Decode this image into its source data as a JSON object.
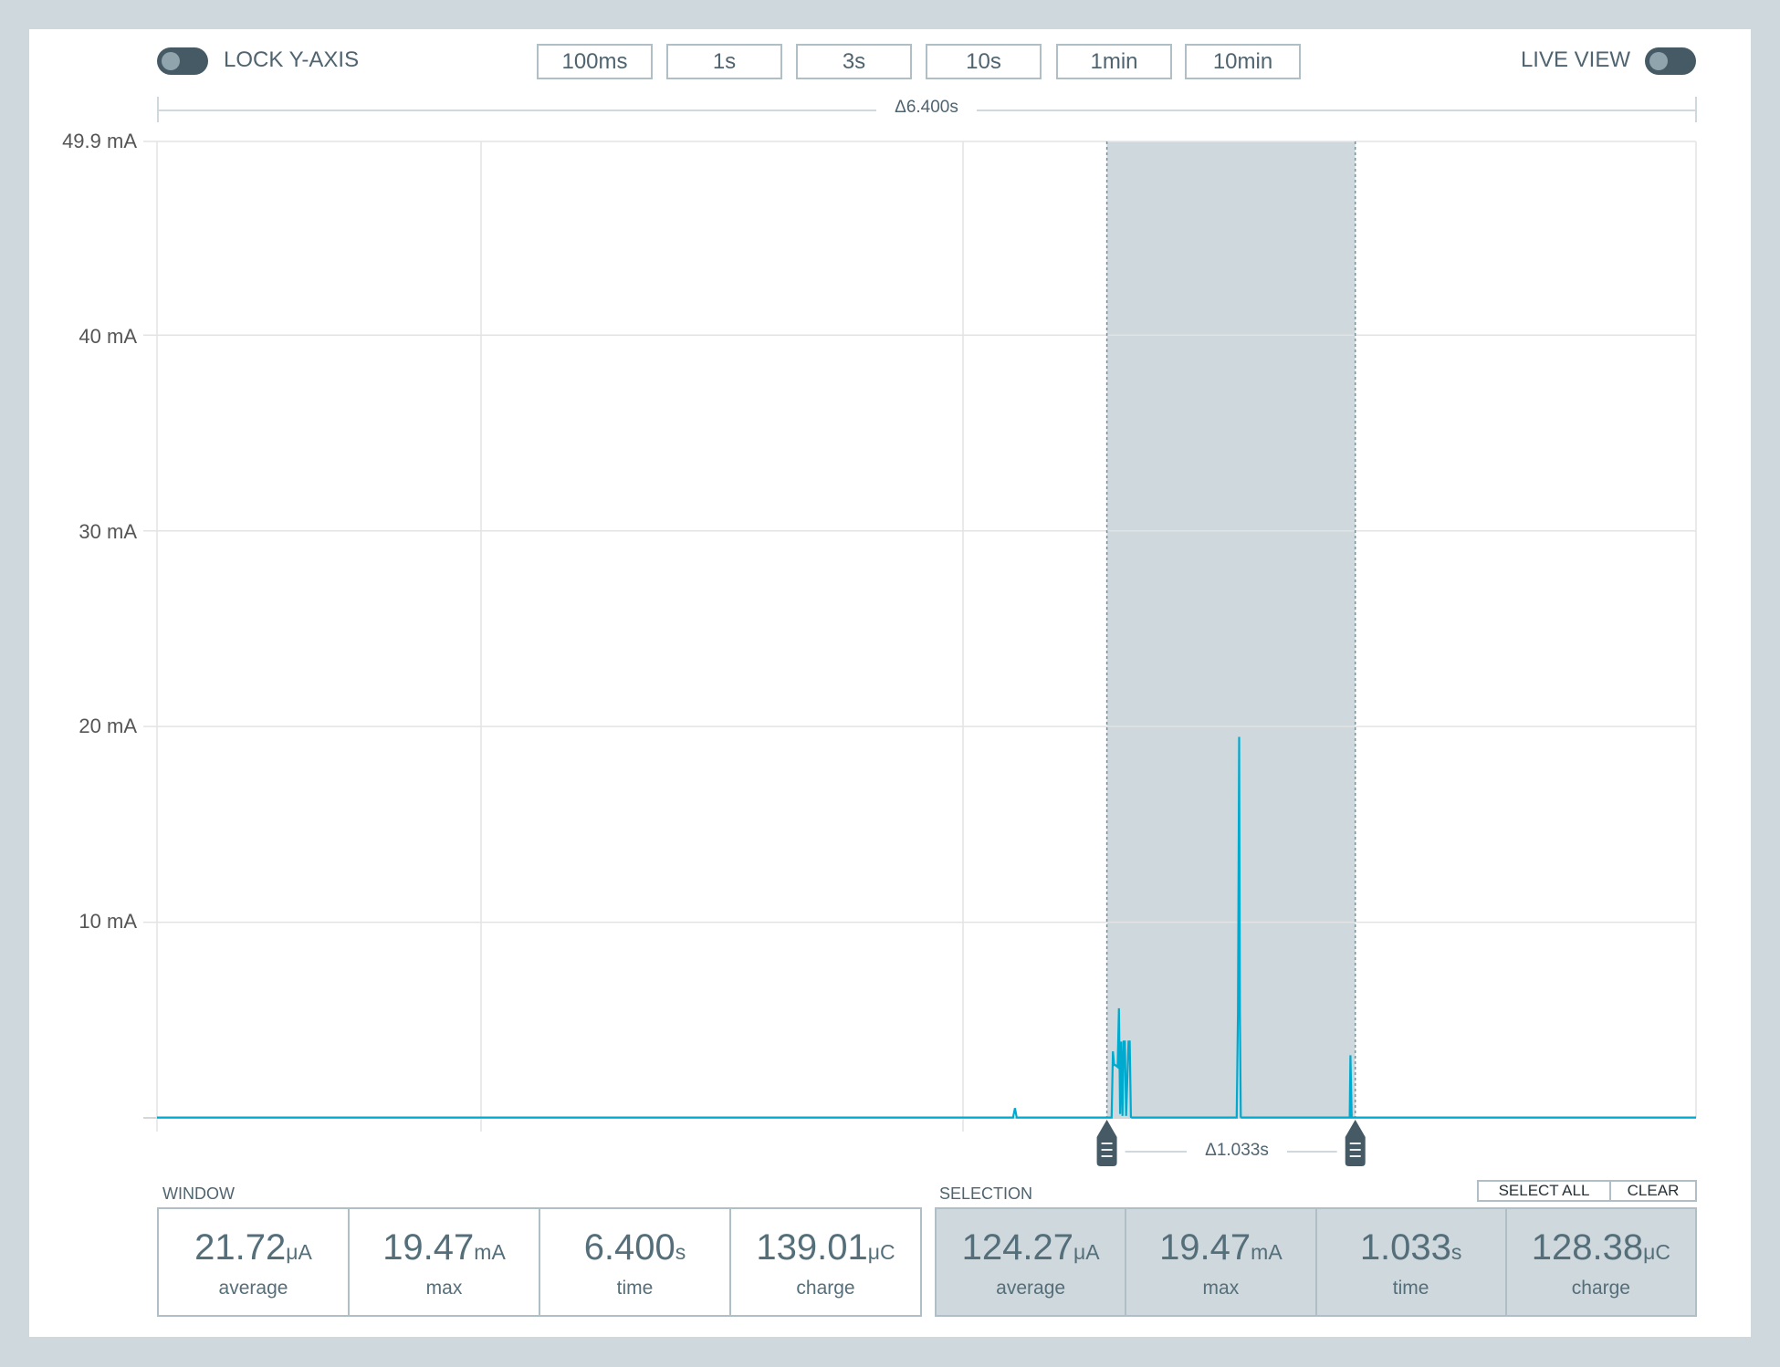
{
  "toolbar": {
    "lock_y_axis": {
      "label": "LOCK Y-AXIS",
      "on": false
    },
    "live_view": {
      "label": "LIVE VIEW",
      "on": false
    },
    "window_buttons": [
      "100ms",
      "1s",
      "3s",
      "10s",
      "1min",
      "10min"
    ]
  },
  "window_span_label": "Δ6.400s",
  "selection_span_label": "Δ1.033s",
  "colors": {
    "trace": "#00a9ce",
    "selection": "#cfd8dc",
    "handle": "#455a64",
    "text": "#4f6470"
  },
  "chart_data": {
    "type": "line",
    "ylabel_ticks": [
      "49.9 mA",
      "40 mA",
      "30 mA",
      "20 mA",
      "10 mA"
    ],
    "ytick_values": [
      49.9,
      40,
      30,
      20,
      10
    ],
    "ylim": [
      0,
      49.9
    ],
    "xlim": [
      0,
      6.4
    ],
    "x_unit": "s",
    "y_unit": "mA",
    "grid": true,
    "selection": [
      3.95,
      4.983
    ],
    "series": [
      {
        "x": [
          0,
          3.56,
          3.568,
          3.575,
          3.97,
          3.975,
          3.98,
          3.985,
          3.995,
          4.0,
          4.005,
          4.01,
          4.015,
          4.02,
          4.025,
          4.03,
          4.04,
          4.045,
          4.05,
          4.055,
          4.49,
          4.495,
          4.5,
          4.503,
          4.507,
          4.51,
          4.96,
          4.963,
          4.968,
          4.975,
          6.4
        ],
        "y": [
          0.02,
          0.02,
          0.5,
          0.02,
          0.02,
          3.4,
          2.7,
          2.7,
          2.6,
          5.6,
          0.2,
          3.9,
          0.1,
          3.9,
          3.9,
          0.1,
          3.9,
          3.9,
          0.05,
          0.02,
          0.02,
          5.4,
          19.47,
          5.4,
          0.05,
          0.02,
          0.02,
          3.2,
          0.02,
          0.02,
          0.02
        ]
      }
    ]
  },
  "window_stats": {
    "title": "WINDOW",
    "items": [
      {
        "value": "21.72",
        "unit": "μA",
        "label": "average"
      },
      {
        "value": "19.47",
        "unit": "mA",
        "label": "max"
      },
      {
        "value": "6.400",
        "unit": "s",
        "label": "time"
      },
      {
        "value": "139.01",
        "unit": "μC",
        "label": "charge"
      }
    ]
  },
  "selection_stats": {
    "title": "SELECTION",
    "select_all_label": "SELECT ALL",
    "clear_label": "CLEAR",
    "items": [
      {
        "value": "124.27",
        "unit": "μA",
        "label": "average"
      },
      {
        "value": "19.47",
        "unit": "mA",
        "label": "max"
      },
      {
        "value": "1.033",
        "unit": "s",
        "label": "time"
      },
      {
        "value": "128.38",
        "unit": "μC",
        "label": "charge"
      }
    ]
  }
}
